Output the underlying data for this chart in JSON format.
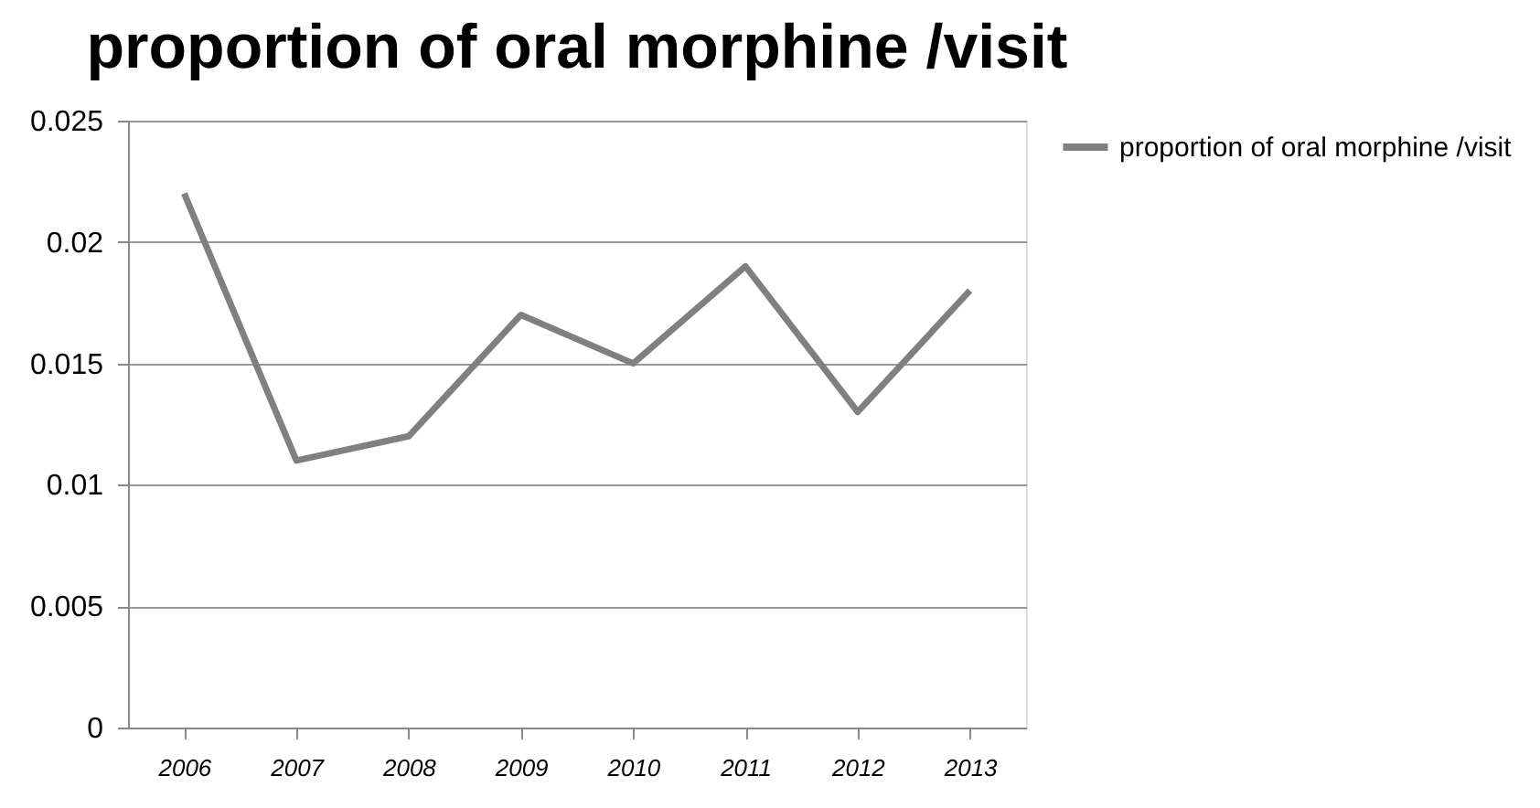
{
  "chart_data": {
    "type": "line",
    "title": "proportion of oral morphine /visit",
    "categories": [
      "2006",
      "2007",
      "2008",
      "2009",
      "2010",
      "2011",
      "2012",
      "2013"
    ],
    "series": [
      {
        "name": "proportion of oral morphine /visit",
        "color": "#808080",
        "values": [
          0.022,
          0.011,
          0.012,
          0.017,
          0.015,
          0.019,
          0.013,
          0.018
        ]
      }
    ],
    "ylim": [
      0,
      0.025
    ],
    "yticks": [
      0,
      0.005,
      0.01,
      0.015,
      0.02,
      0.025
    ],
    "grid": "y",
    "legend": "right",
    "marker": "none",
    "line_style": "solid"
  }
}
